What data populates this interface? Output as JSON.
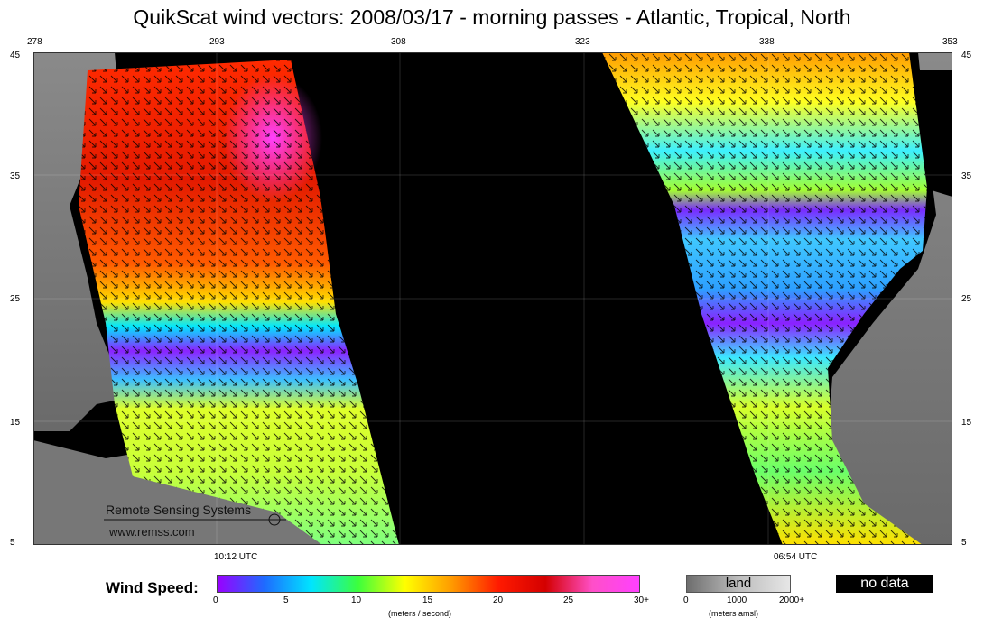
{
  "title": "QuikScat wind vectors: 2008/03/17 - morning passes - Atlantic, Tropical, North",
  "lon_ticks": [
    "278",
    "293",
    "308",
    "323",
    "338",
    "353"
  ],
  "lat_ticks": [
    "45",
    "35",
    "25",
    "15",
    "5"
  ],
  "pass_times": [
    "10:12 UTC",
    "06:54 UTC"
  ],
  "watermark": {
    "company": "Remote Sensing Systems",
    "url": "www.remss.com"
  },
  "legend": {
    "label": "Wind Speed:",
    "ticks": [
      "0",
      "5",
      "10",
      "15",
      "20",
      "25",
      "30+"
    ],
    "unit": "(meters / second)",
    "colors": [
      "#9a00ff",
      "#1e6bff",
      "#00e5ff",
      "#3cff3c",
      "#ffff00",
      "#ff9a00",
      "#ff1a00",
      "#d40000",
      "#ff4fc8",
      "#ff40ff"
    ]
  },
  "land_legend": {
    "label": "land",
    "ticks": [
      "0",
      "1000",
      "2000+"
    ],
    "unit": "(meters amsl)"
  },
  "nodata": {
    "label": "no data"
  }
}
